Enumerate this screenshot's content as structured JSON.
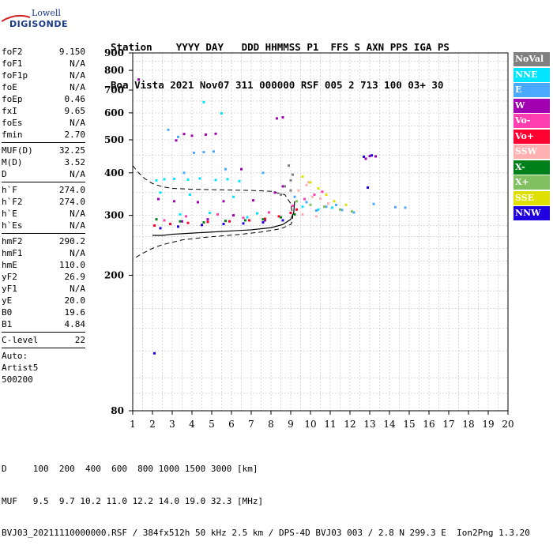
{
  "logo": {
    "line1": "Lowell",
    "line2": "DIGISONDE"
  },
  "header": {
    "row1": "Station    YYYY DAY   DDD HHMMSS P1  FFS S AXN PPS IGA PS",
    "row2": "Boa Vista 2021 Nov07 311 000000 RSF 005 2 713 100 03+ 30"
  },
  "params": [
    {
      "label": "foF2",
      "value": "9.150"
    },
    {
      "label": "foF1",
      "value": "N/A"
    },
    {
      "label": "foF1p",
      "value": "N/A"
    },
    {
      "label": "foE",
      "value": "N/A"
    },
    {
      "label": "foEp",
      "value": "0.46"
    },
    {
      "label": "fxI",
      "value": "9.65"
    },
    {
      "label": "foEs",
      "value": "N/A"
    },
    {
      "label": "fmin",
      "value": "2.70"
    },
    {
      "sep": true
    },
    {
      "label": "MUF(D)",
      "value": "32.25"
    },
    {
      "label": "M(D)",
      "value": "3.52"
    },
    {
      "label": "D",
      "value": "N/A"
    },
    {
      "sep": true
    },
    {
      "label": "h`F",
      "value": "274.0"
    },
    {
      "label": "h`F2",
      "value": "274.0"
    },
    {
      "label": "h`E",
      "value": "N/A"
    },
    {
      "label": "h`Es",
      "value": "N/A"
    },
    {
      "sep": true
    },
    {
      "label": "hmF2",
      "value": "290.2"
    },
    {
      "label": "hmF1",
      "value": "N/A"
    },
    {
      "label": "hmE",
      "value": "110.0"
    },
    {
      "label": "yF2",
      "value": "26.9"
    },
    {
      "label": "yF1",
      "value": "N/A"
    },
    {
      "label": "yE",
      "value": "20.0"
    },
    {
      "label": "B0",
      "value": "19.6"
    },
    {
      "label": "B1",
      "value": "4.84"
    },
    {
      "sep": true
    },
    {
      "label": "C-level",
      "value": "22"
    },
    {
      "sep": true
    },
    {
      "text": "Auto:"
    },
    {
      "text": "Artist5"
    },
    {
      "text": "500200"
    }
  ],
  "legend": [
    {
      "label": "NoVal",
      "color": "#808080"
    },
    {
      "label": "NNE",
      "color": "#00e5ff"
    },
    {
      "label": "E",
      "color": "#4aa8ff"
    },
    {
      "label": "W",
      "color": "#a000b0"
    },
    {
      "label": "Vo-",
      "color": "#ff3fb0"
    },
    {
      "label": "Vo+",
      "color": "#ff0030"
    },
    {
      "label": "SSW",
      "color": "#ffb0b0"
    },
    {
      "label": "X-",
      "color": "#00801a"
    },
    {
      "label": "X+",
      "color": "#80c060"
    },
    {
      "label": "SSE",
      "color": "#e0e000"
    },
    {
      "label": "NNW",
      "color": "#2000e0"
    }
  ],
  "footer": {
    "line1": "D     100  200  400  600  800 1000 1500 3000 [km]",
    "line2": "MUF   9.5  9.7 10.2 11.0 12.2 14.0 19.0 32.3 [MHz]",
    "line3": "BVJ03_20211110000000.RSF / 384fx512h 50 kHz 2.5 km / DPS-4D BVJ03 003 / 2.8 N 299.3 E  Ion2Png 1.3.20"
  },
  "chart_data": {
    "type": "scatter",
    "xlim": [
      1,
      20
    ],
    "ylim": [
      80,
      900
    ],
    "x_ticks": [
      1,
      2,
      3,
      4,
      5,
      6,
      7,
      8,
      9,
      10,
      11,
      12,
      13,
      14,
      15,
      16,
      17,
      18,
      19,
      20
    ],
    "y_ticks": [
      80,
      200,
      300,
      400,
      500,
      600,
      700,
      800,
      900
    ],
    "grid": true,
    "series": [
      {
        "name": "NNE",
        "points": [
          [
            2.2,
            380
          ],
          [
            2.6,
            383
          ],
          [
            3.1,
            384
          ],
          [
            3.8,
            382
          ],
          [
            4.4,
            385
          ],
          [
            5.2,
            381
          ],
          [
            5.8,
            383
          ],
          [
            6.4,
            378
          ],
          [
            3.4,
            302
          ],
          [
            4.9,
            305
          ],
          [
            6.8,
            296
          ],
          [
            7.3,
            304
          ],
          [
            5.5,
            598
          ],
          [
            4.6,
            645
          ],
          [
            9.6,
            318
          ],
          [
            10.4,
            312
          ],
          [
            11.1,
            316
          ],
          [
            2.4,
            350
          ],
          [
            3.9,
            345
          ],
          [
            6.1,
            340
          ]
        ]
      },
      {
        "name": "E",
        "points": [
          [
            2.8,
            535
          ],
          [
            3.3,
            510
          ],
          [
            4.1,
            458
          ],
          [
            4.6,
            460
          ],
          [
            5.1,
            462
          ],
          [
            9.2,
            340
          ],
          [
            9.8,
            328
          ],
          [
            10.3,
            310
          ],
          [
            10.8,
            318
          ],
          [
            11.3,
            322
          ],
          [
            11.6,
            311
          ],
          [
            12.2,
            306
          ],
          [
            14.3,
            317
          ],
          [
            14.8,
            316
          ],
          [
            13.2,
            324
          ],
          [
            3.6,
            400
          ],
          [
            5.7,
            410
          ],
          [
            7.6,
            400
          ]
        ]
      },
      {
        "name": "W",
        "points": [
          [
            1.3,
            752
          ],
          [
            3.2,
            498
          ],
          [
            3.6,
            520
          ],
          [
            4.0,
            514
          ],
          [
            4.7,
            518
          ],
          [
            5.2,
            521
          ],
          [
            2.3,
            335
          ],
          [
            3.1,
            330
          ],
          [
            4.3,
            328
          ],
          [
            5.6,
            330
          ],
          [
            7.1,
            332
          ],
          [
            8.2,
            350
          ],
          [
            8.6,
            365
          ],
          [
            3.5,
            288
          ],
          [
            4.8,
            292
          ],
          [
            6.1,
            300
          ],
          [
            7.7,
            290
          ],
          [
            12.8,
            440
          ],
          [
            13.0,
            448
          ],
          [
            13.3,
            447
          ],
          [
            8.6,
            582
          ],
          [
            8.3,
            578
          ],
          [
            6.5,
            410
          ]
        ]
      },
      {
        "name": "Vo-",
        "points": [
          [
            2.6,
            290
          ],
          [
            3.7,
            298
          ],
          [
            5.3,
            302
          ],
          [
            6.6,
            295
          ],
          [
            7.9,
            306
          ],
          [
            9.1,
            320
          ],
          [
            9.7,
            335
          ],
          [
            10.2,
            345
          ],
          [
            10.6,
            352
          ]
        ]
      },
      {
        "name": "Vo+",
        "points": [
          [
            2.1,
            280
          ],
          [
            2.9,
            283
          ],
          [
            3.8,
            285
          ],
          [
            4.8,
            287
          ],
          [
            5.9,
            288
          ],
          [
            6.9,
            290
          ],
          [
            7.7,
            293
          ],
          [
            8.4,
            298
          ],
          [
            9.0,
            305
          ],
          [
            9.3,
            312
          ]
        ]
      },
      {
        "name": "SSW",
        "points": [
          [
            9.4,
            355
          ],
          [
            9.8,
            368
          ],
          [
            10.1,
            340
          ],
          [
            10.5,
            336
          ],
          [
            10.9,
            325
          ],
          [
            9.6,
            302
          ],
          [
            10.3,
            298
          ],
          [
            9.9,
            375
          ]
        ]
      },
      {
        "name": "X-",
        "points": [
          [
            2.2,
            292
          ],
          [
            3.4,
            288
          ],
          [
            4.6,
            286
          ],
          [
            5.7,
            289
          ],
          [
            6.7,
            290
          ],
          [
            7.6,
            292
          ],
          [
            8.5,
            296
          ],
          [
            9.2,
            302
          ]
        ]
      },
      {
        "name": "X+",
        "points": [
          [
            9.3,
            330
          ],
          [
            10.0,
            322
          ],
          [
            10.7,
            318
          ],
          [
            11.5,
            312
          ],
          [
            12.1,
            308
          ]
        ]
      },
      {
        "name": "SSE",
        "points": [
          [
            9.6,
            390
          ],
          [
            10.0,
            375
          ],
          [
            10.4,
            360
          ],
          [
            10.8,
            345
          ],
          [
            11.2,
            330
          ],
          [
            11.8,
            322
          ]
        ]
      },
      {
        "name": "NNW",
        "points": [
          [
            2.4,
            275
          ],
          [
            3.3,
            278
          ],
          [
            4.5,
            281
          ],
          [
            5.6,
            283
          ],
          [
            6.6,
            284
          ],
          [
            7.6,
            286
          ],
          [
            8.6,
            290
          ],
          [
            12.7,
            446
          ],
          [
            13.1,
            450
          ],
          [
            12.9,
            362
          ],
          [
            2.1,
            118
          ]
        ]
      },
      {
        "name": "NoVal",
        "points": [
          [
            9.0,
            380
          ],
          [
            8.9,
            420
          ],
          [
            8.7,
            365
          ],
          [
            9.1,
            395
          ],
          [
            8.5,
            345
          ],
          [
            9.0,
            355
          ]
        ]
      }
    ],
    "profile_curve": [
      [
        1,
        420
      ],
      [
        1.3,
        400
      ],
      [
        1.6,
        385
      ],
      [
        2.0,
        372
      ],
      [
        2.5,
        364
      ],
      [
        3.0,
        360
      ],
      [
        4.0,
        358
      ],
      [
        5.0,
        357
      ],
      [
        6.0,
        356
      ],
      [
        7.0,
        355
      ],
      [
        8.0,
        353
      ],
      [
        8.7,
        345
      ],
      [
        9.0,
        325
      ],
      [
        9.1,
        300
      ],
      [
        9.1,
        290
      ],
      [
        9.0,
        282
      ],
      [
        8.5,
        274
      ],
      [
        7.5,
        268
      ],
      [
        6.5,
        264
      ],
      [
        5.5,
        261
      ],
      [
        4.5,
        258
      ],
      [
        3.5,
        254
      ],
      [
        2.5,
        246
      ],
      [
        2.0,
        240
      ],
      [
        1.5,
        232
      ],
      [
        1.0,
        223
      ]
    ],
    "trace_curve": [
      [
        2.0,
        262
      ],
      [
        2.5,
        262
      ],
      [
        3.0,
        264
      ],
      [
        4.0,
        266
      ],
      [
        5.0,
        268
      ],
      [
        6.0,
        270
      ],
      [
        7.0,
        272
      ],
      [
        8.0,
        276
      ],
      [
        8.6,
        282
      ],
      [
        9.0,
        292
      ],
      [
        9.15,
        305
      ],
      [
        9.2,
        330
      ]
    ]
  }
}
